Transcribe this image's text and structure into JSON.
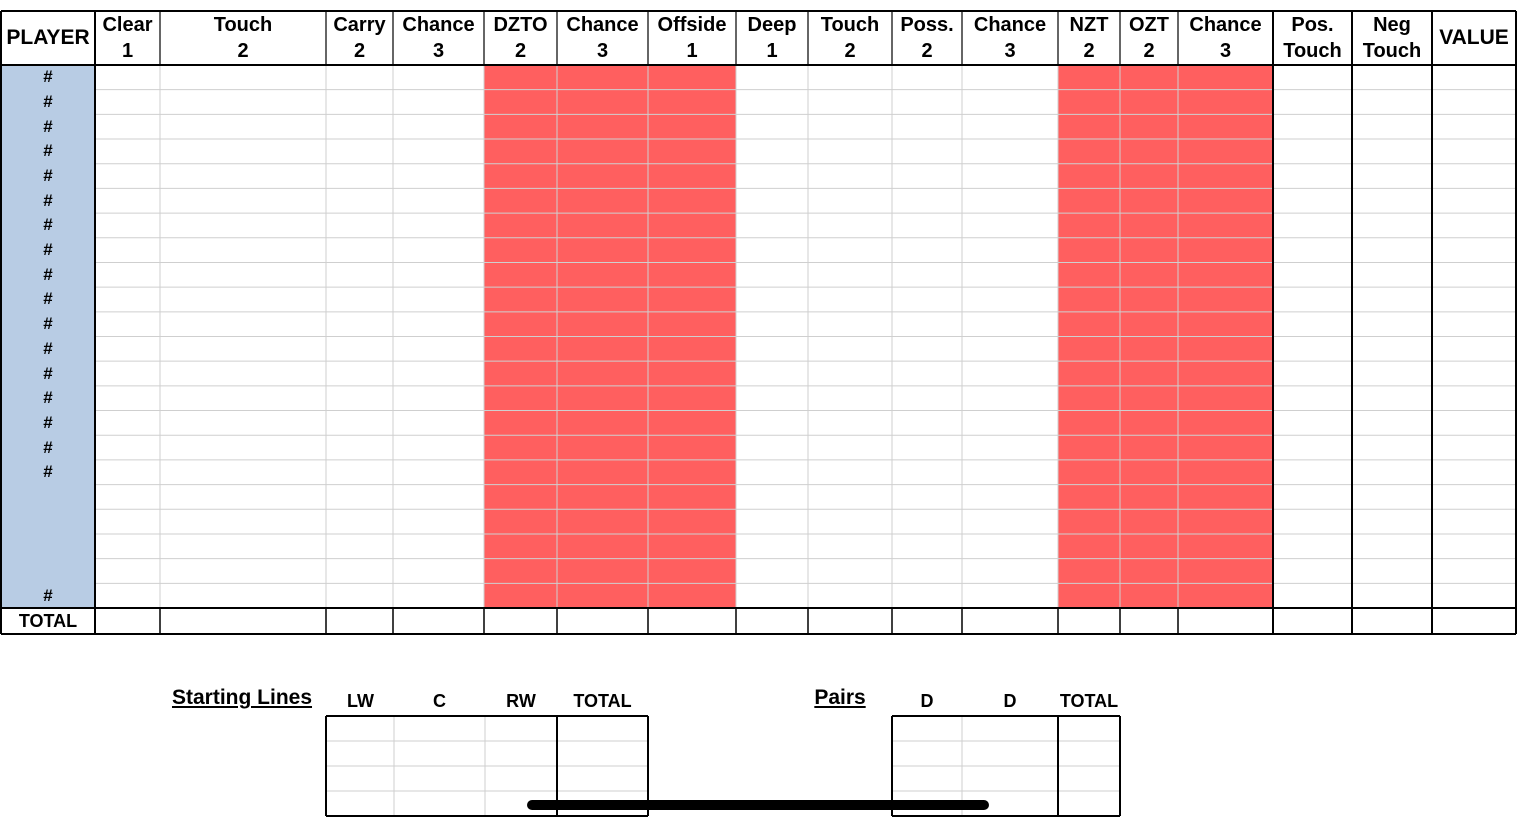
{
  "scoresheet": {
    "headers": [
      {
        "top": "PLAYER",
        "bottom": ""
      },
      {
        "top": "Clear",
        "bottom": "1"
      },
      {
        "top": "Touch",
        "bottom": "2"
      },
      {
        "top": "Carry",
        "bottom": "2"
      },
      {
        "top": "Chance",
        "bottom": "3"
      },
      {
        "top": "DZTO",
        "bottom": "2"
      },
      {
        "top": "Chance",
        "bottom": "3"
      },
      {
        "top": "Offside",
        "bottom": "1"
      },
      {
        "top": "Deep",
        "bottom": "1"
      },
      {
        "top": "Touch",
        "bottom": "2"
      },
      {
        "top": "Poss.",
        "bottom": "2"
      },
      {
        "top": "Chance",
        "bottom": "3"
      },
      {
        "top": "NZT",
        "bottom": "2"
      },
      {
        "top": "OZT",
        "bottom": "2"
      },
      {
        "top": "Chance",
        "bottom": "3"
      },
      {
        "top": "Pos.",
        "bottom": "Touch"
      },
      {
        "top": "Neg",
        "bottom": "Touch"
      },
      {
        "top": "VALUE",
        "bottom": ""
      }
    ],
    "player_marks": [
      "#",
      "#",
      "#",
      "#",
      "#",
      "#",
      "#",
      "#",
      "#",
      "#",
      "#",
      "#",
      "#",
      "#",
      "#",
      "#",
      "#",
      "",
      "",
      "",
      "#"
    ],
    "total_label": "TOTAL",
    "red_columns": [
      5,
      6,
      7,
      12,
      13,
      14
    ],
    "colors": {
      "player_column": "#b8cce4",
      "highlight": "#ff5f5f",
      "gridline": "#cfcfcf",
      "border": "#000000"
    }
  },
  "starting_lines": {
    "title": "Starting Lines",
    "columns": [
      "LW",
      "C",
      "RW",
      "TOTAL"
    ]
  },
  "pairs": {
    "title": "Pairs",
    "columns": [
      "D",
      "D",
      "TOTAL"
    ]
  }
}
